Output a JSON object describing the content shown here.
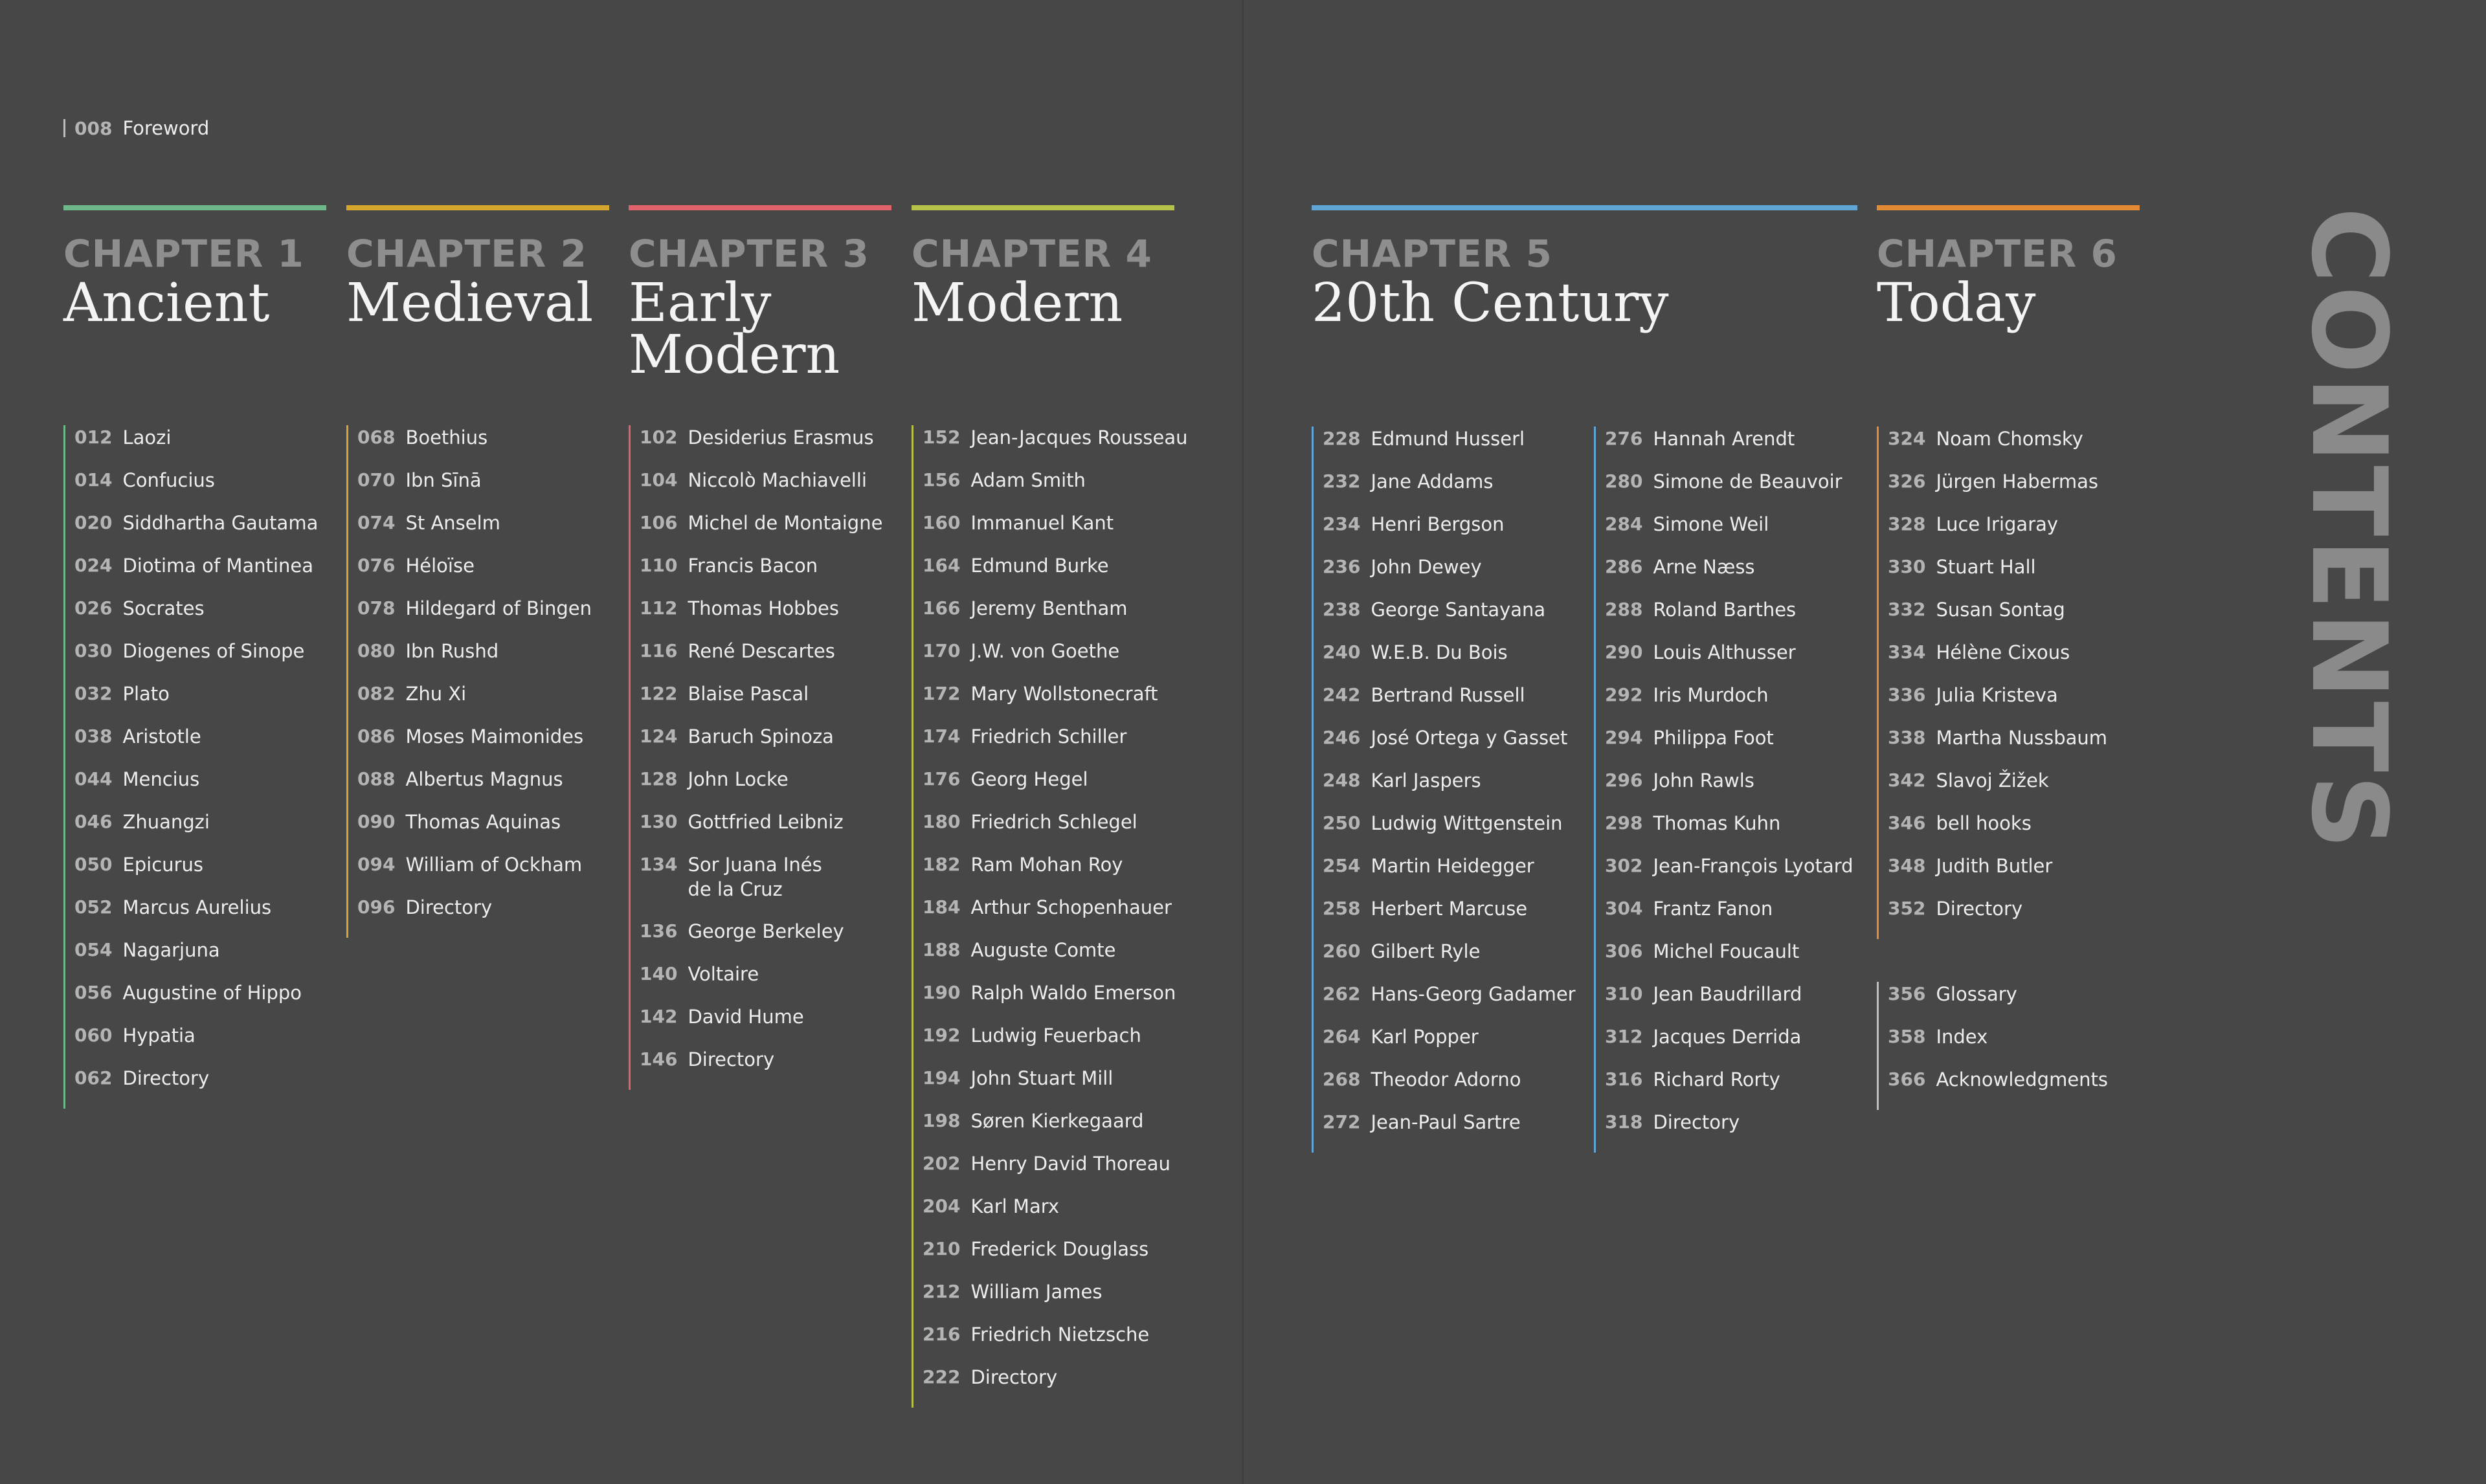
{
  "foreword": {
    "page": "008",
    "title": "Foreword"
  },
  "side_title": "CONTENTS",
  "chapters": [
    {
      "id": "ch1",
      "number": "CHAPTER 1",
      "name": "Ancient",
      "color": "#6fb88a",
      "columns": [
        [
          {
            "page": "012",
            "title": "Laozi"
          },
          {
            "page": "014",
            "title": "Confucius"
          },
          {
            "page": "020",
            "title": "Siddhartha Gautama"
          },
          {
            "page": "024",
            "title": "Diotima of Mantinea"
          },
          {
            "page": "026",
            "title": "Socrates"
          },
          {
            "page": "030",
            "title": "Diogenes of Sinope"
          },
          {
            "page": "032",
            "title": "Plato"
          },
          {
            "page": "038",
            "title": "Aristotle"
          },
          {
            "page": "044",
            "title": "Mencius"
          },
          {
            "page": "046",
            "title": "Zhuangzi"
          },
          {
            "page": "050",
            "title": "Epicurus"
          },
          {
            "page": "052",
            "title": "Marcus Aurelius"
          },
          {
            "page": "054",
            "title": "Nagarjuna"
          },
          {
            "page": "056",
            "title": "Augustine of Hippo"
          },
          {
            "page": "060",
            "title": "Hypatia"
          },
          {
            "page": "062",
            "title": "Directory"
          }
        ]
      ]
    },
    {
      "id": "ch2",
      "number": "CHAPTER 2",
      "name": "Medieval",
      "color": "#d4a72c",
      "columns": [
        [
          {
            "page": "068",
            "title": "Boethius"
          },
          {
            "page": "070",
            "title": "Ibn Sīnā"
          },
          {
            "page": "074",
            "title": "St Anselm"
          },
          {
            "page": "076",
            "title": "Héloïse"
          },
          {
            "page": "078",
            "title": "Hildegard of Bingen"
          },
          {
            "page": "080",
            "title": "Ibn Rushd"
          },
          {
            "page": "082",
            "title": "Zhu Xi"
          },
          {
            "page": "086",
            "title": "Moses Maimonides"
          },
          {
            "page": "088",
            "title": "Albertus Magnus"
          },
          {
            "page": "090",
            "title": "Thomas Aquinas"
          },
          {
            "page": "094",
            "title": "William of Ockham"
          },
          {
            "page": "096",
            "title": "Directory"
          }
        ]
      ]
    },
    {
      "id": "ch3",
      "number": "CHAPTER 3",
      "name": "Early\nModern",
      "color": "#e0636b",
      "columns": [
        [
          {
            "page": "102",
            "title": "Desiderius Erasmus"
          },
          {
            "page": "104",
            "title": "Niccolò Machiavelli"
          },
          {
            "page": "106",
            "title": "Michel de Montaigne"
          },
          {
            "page": "110",
            "title": "Francis Bacon"
          },
          {
            "page": "112",
            "title": "Thomas Hobbes"
          },
          {
            "page": "116",
            "title": "René Descartes"
          },
          {
            "page": "122",
            "title": "Blaise Pascal"
          },
          {
            "page": "124",
            "title": "Baruch Spinoza"
          },
          {
            "page": "128",
            "title": "John Locke"
          },
          {
            "page": "130",
            "title": "Gottfried Leibniz"
          },
          {
            "page": "134",
            "title": "Sor Juana Inés\nde la Cruz"
          },
          {
            "page": "136",
            "title": "George Berkeley"
          },
          {
            "page": "140",
            "title": "Voltaire"
          },
          {
            "page": "142",
            "title": "David Hume"
          },
          {
            "page": "146",
            "title": "Directory"
          }
        ]
      ]
    },
    {
      "id": "ch4",
      "number": "CHAPTER 4",
      "name": "Modern",
      "color": "#b6c24a",
      "columns": [
        [
          {
            "page": "152",
            "title": "Jean-Jacques Rousseau"
          },
          {
            "page": "156",
            "title": "Adam Smith"
          },
          {
            "page": "160",
            "title": "Immanuel Kant"
          },
          {
            "page": "164",
            "title": "Edmund Burke"
          },
          {
            "page": "166",
            "title": "Jeremy Bentham"
          },
          {
            "page": "170",
            "title": "J.W. von Goethe"
          },
          {
            "page": "172",
            "title": "Mary Wollstonecraft"
          },
          {
            "page": "174",
            "title": "Friedrich Schiller"
          },
          {
            "page": "176",
            "title": "Georg Hegel"
          },
          {
            "page": "180",
            "title": "Friedrich Schlegel"
          },
          {
            "page": "182",
            "title": "Ram Mohan Roy"
          },
          {
            "page": "184",
            "title": "Arthur Schopenhauer"
          },
          {
            "page": "188",
            "title": "Auguste Comte"
          },
          {
            "page": "190",
            "title": "Ralph Waldo Emerson"
          },
          {
            "page": "192",
            "title": "Ludwig Feuerbach"
          },
          {
            "page": "194",
            "title": "John Stuart Mill"
          },
          {
            "page": "198",
            "title": "Søren Kierkegaard"
          },
          {
            "page": "202",
            "title": "Henry David Thoreau"
          },
          {
            "page": "204",
            "title": "Karl Marx"
          },
          {
            "page": "210",
            "title": "Frederick Douglass"
          },
          {
            "page": "212",
            "title": "William James"
          },
          {
            "page": "216",
            "title": "Friedrich Nietzsche"
          },
          {
            "page": "222",
            "title": "Directory"
          }
        ]
      ]
    },
    {
      "id": "ch5",
      "number": "CHAPTER 5",
      "name": "20th Century",
      "color": "#5fa6d6",
      "columns": [
        [
          {
            "page": "228",
            "title": "Edmund Husserl"
          },
          {
            "page": "232",
            "title": "Jane Addams"
          },
          {
            "page": "234",
            "title": "Henri Bergson"
          },
          {
            "page": "236",
            "title": "John Dewey"
          },
          {
            "page": "238",
            "title": "George Santayana"
          },
          {
            "page": "240",
            "title": "W.E.B. Du Bois"
          },
          {
            "page": "242",
            "title": "Bertrand Russell"
          },
          {
            "page": "246",
            "title": "José Ortega y Gasset"
          },
          {
            "page": "248",
            "title": "Karl Jaspers"
          },
          {
            "page": "250",
            "title": "Ludwig Wittgenstein"
          },
          {
            "page": "254",
            "title": "Martin Heidegger"
          },
          {
            "page": "258",
            "title": "Herbert Marcuse"
          },
          {
            "page": "260",
            "title": "Gilbert Ryle"
          },
          {
            "page": "262",
            "title": "Hans-Georg Gadamer"
          },
          {
            "page": "264",
            "title": "Karl Popper"
          },
          {
            "page": "268",
            "title": "Theodor Adorno"
          },
          {
            "page": "272",
            "title": "Jean-Paul Sartre"
          }
        ],
        [
          {
            "page": "276",
            "title": "Hannah Arendt"
          },
          {
            "page": "280",
            "title": "Simone de Beauvoir"
          },
          {
            "page": "284",
            "title": "Simone Weil"
          },
          {
            "page": "286",
            "title": "Arne Næss"
          },
          {
            "page": "288",
            "title": "Roland Barthes"
          },
          {
            "page": "290",
            "title": "Louis Althusser"
          },
          {
            "page": "292",
            "title": "Iris Murdoch"
          },
          {
            "page": "294",
            "title": "Philippa Foot"
          },
          {
            "page": "296",
            "title": "John Rawls"
          },
          {
            "page": "298",
            "title": "Thomas Kuhn"
          },
          {
            "page": "302",
            "title": "Jean-François Lyotard"
          },
          {
            "page": "304",
            "title": "Frantz Fanon"
          },
          {
            "page": "306",
            "title": "Michel Foucault"
          },
          {
            "page": "310",
            "title": "Jean Baudrillard"
          },
          {
            "page": "312",
            "title": "Jacques Derrida"
          },
          {
            "page": "316",
            "title": "Richard Rorty"
          },
          {
            "page": "318",
            "title": "Directory"
          }
        ]
      ]
    },
    {
      "id": "ch6",
      "number": "CHAPTER 6",
      "name": "Today",
      "color": "#e38a35",
      "columns": [
        [
          {
            "page": "324",
            "title": "Noam Chomsky"
          },
          {
            "page": "326",
            "title": "Jürgen Habermas"
          },
          {
            "page": "328",
            "title": "Luce Irigaray"
          },
          {
            "page": "330",
            "title": "Stuart Hall"
          },
          {
            "page": "332",
            "title": "Susan Sontag"
          },
          {
            "page": "334",
            "title": "Hélène Cixous"
          },
          {
            "page": "336",
            "title": "Julia Kristeva"
          },
          {
            "page": "338",
            "title": "Martha Nussbaum"
          },
          {
            "page": "342",
            "title": "Slavoj Žižek"
          },
          {
            "page": "346",
            "title": "bell hooks"
          },
          {
            "page": "348",
            "title": "Judith Butler"
          },
          {
            "page": "352",
            "title": "Directory"
          }
        ]
      ]
    }
  ],
  "back_matter": [
    {
      "page": "356",
      "title": "Glossary"
    },
    {
      "page": "358",
      "title": "Index"
    },
    {
      "page": "366",
      "title": "Acknowledgments"
    }
  ]
}
